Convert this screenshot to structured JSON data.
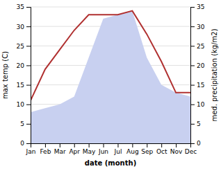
{
  "chart_data": {
    "type": "line",
    "categories": [
      "Jan",
      "Feb",
      "Mar",
      "Apr",
      "May",
      "Jun",
      "Jul",
      "Aug",
      "Sep",
      "Oct",
      "Nov",
      "Dec"
    ],
    "series": [
      {
        "type": "area",
        "color": "#c8d0f0",
        "axis": "y2",
        "values": [
          8,
          9,
          10,
          12,
          22,
          32,
          33,
          34,
          22,
          15,
          13,
          12
        ]
      },
      {
        "type": "line",
        "color": "#b03030",
        "values": [
          11,
          19,
          24,
          29,
          33,
          33,
          33,
          34,
          28,
          21,
          13,
          13
        ]
      }
    ],
    "xlabel": "date (month)",
    "ylabel": "max temp (C)",
    "y2label": "med. precipitation (kg/m2)",
    "ylim": [
      0,
      35
    ],
    "yticks": [
      0,
      5,
      10,
      15,
      20,
      25,
      30,
      35
    ],
    "y2lim": [
      0,
      35
    ],
    "y2ticks": [
      0,
      5,
      10,
      15,
      20,
      25,
      30,
      35
    ],
    "grid": true
  }
}
